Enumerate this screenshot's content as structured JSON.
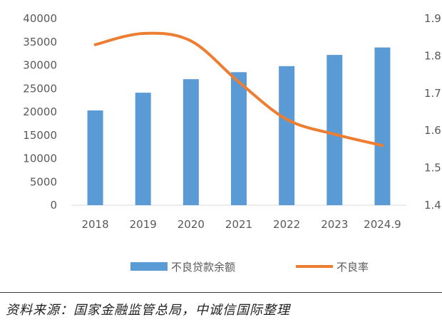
{
  "chart_data": {
    "type": "bar+line",
    "categories": [
      "2018",
      "2019",
      "2020",
      "2021",
      "2022",
      "2023",
      "2024.9"
    ],
    "series": [
      {
        "name": "不良贷款余额",
        "type": "bar",
        "axis": "left",
        "color": "#5b9bd5",
        "values": [
          20300,
          24100,
          27000,
          28500,
          29800,
          32200,
          33800
        ]
      },
      {
        "name": "不良率",
        "type": "line",
        "axis": "right",
        "color": "#ed7d31",
        "values": [
          1.83,
          1.86,
          1.84,
          1.73,
          1.63,
          1.59,
          1.56
        ]
      }
    ],
    "y_left": {
      "min": 0,
      "max": 40000,
      "ticks": [
        "0",
        "5000",
        "10000",
        "15000",
        "20000",
        "25000",
        "30000",
        "35000",
        "40000"
      ]
    },
    "y_right": {
      "min": 1.4,
      "max": 1.9,
      "ticks": [
        "1.4",
        "1.5",
        "1.6",
        "1.7",
        "1.8",
        "1.9"
      ]
    },
    "grid": false,
    "legend_position": "bottom"
  },
  "source_note": "资料来源：国家金融监管总局，中诚信国际整理"
}
